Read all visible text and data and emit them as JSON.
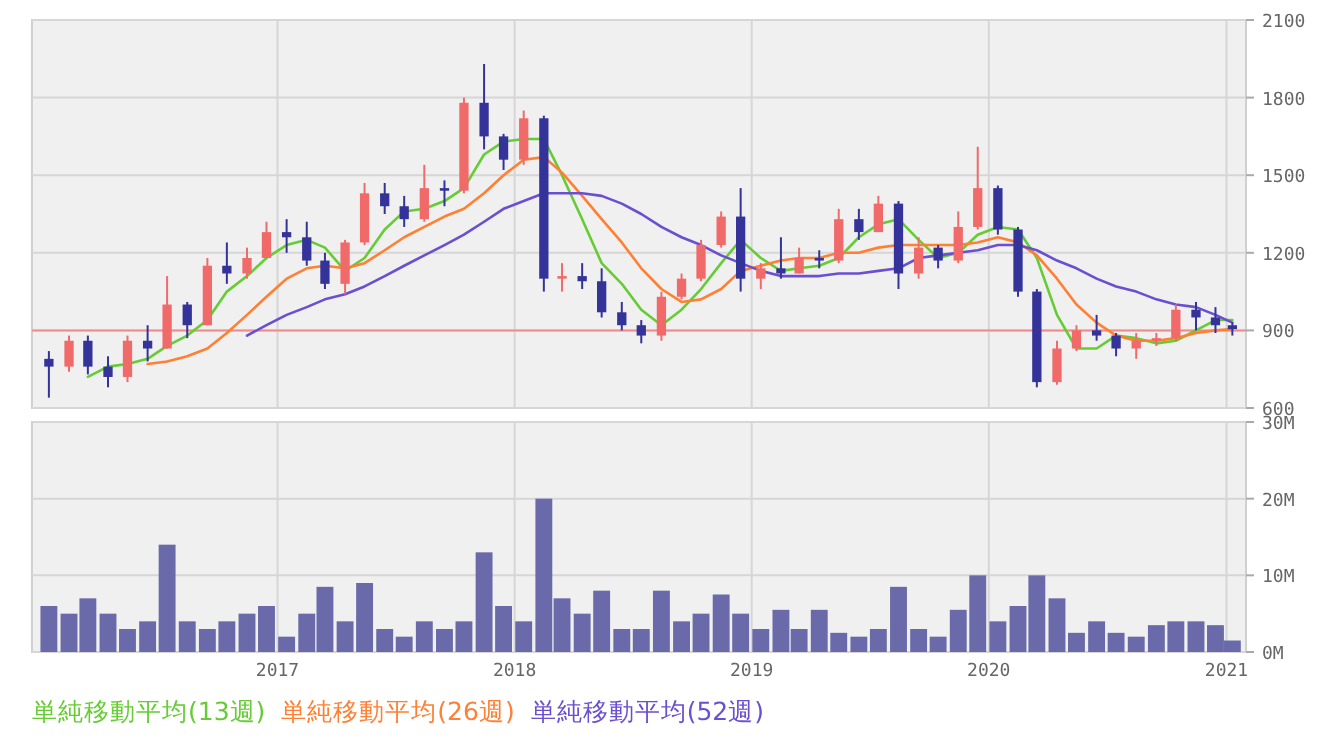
{
  "chart_data": [
    {
      "type": "candlestick",
      "xlim": [
        "2015-12-20",
        "2021-01-31"
      ],
      "xticks": [
        {
          "value": "2017-01-01",
          "label": null
        },
        {
          "value": "2018-01-01",
          "label": null
        },
        {
          "value": "2019-01-01",
          "label": null
        },
        {
          "value": "2020-01-01",
          "label": null
        },
        {
          "value": "2021-01-01",
          "label": null
        }
      ],
      "ylim": [
        600,
        2100
      ],
      "yticks": [
        600,
        900,
        1200,
        1500,
        1800,
        2100
      ],
      "tick_labels": "y",
      "grid": true,
      "legend": "bottom",
      "x": [
        "2016-01-15",
        "2016-02-15",
        "2016-03-15",
        "2016-04-15",
        "2016-05-15",
        "2016-06-15",
        "2016-07-15",
        "2016-08-15",
        "2016-09-15",
        "2016-10-15",
        "2016-11-15",
        "2016-12-15",
        "2017-01-15",
        "2017-02-15",
        "2017-03-15",
        "2017-04-15",
        "2017-05-15",
        "2017-06-15",
        "2017-07-15",
        "2017-08-15",
        "2017-09-15",
        "2017-10-15",
        "2017-11-15",
        "2017-12-15",
        "2018-01-15",
        "2018-02-15",
        "2018-03-15",
        "2018-04-15",
        "2018-05-15",
        "2018-06-15",
        "2018-07-15",
        "2018-08-15",
        "2018-09-15",
        "2018-10-15",
        "2018-11-15",
        "2018-12-15",
        "2019-01-15",
        "2019-02-15",
        "2019-03-15",
        "2019-04-15",
        "2019-05-15",
        "2019-06-15",
        "2019-07-15",
        "2019-08-15",
        "2019-09-15",
        "2019-10-15",
        "2019-11-15",
        "2019-12-15",
        "2020-01-15",
        "2020-02-15",
        "2020-03-15",
        "2020-04-15",
        "2020-05-15",
        "2020-06-15",
        "2020-07-15",
        "2020-08-15",
        "2020-09-15",
        "2020-10-15",
        "2020-11-15",
        "2020-12-15",
        "2021-01-10"
      ],
      "ohlc": [
        [
          790,
          820,
          640,
          760
        ],
        [
          760,
          880,
          740,
          860
        ],
        [
          860,
          880,
          730,
          760
        ],
        [
          760,
          800,
          680,
          720
        ],
        [
          720,
          880,
          700,
          860
        ],
        [
          860,
          920,
          780,
          830
        ],
        [
          830,
          1110,
          830,
          1000
        ],
        [
          1000,
          1010,
          870,
          920
        ],
        [
          920,
          1180,
          920,
          1150
        ],
        [
          1150,
          1240,
          1080,
          1120
        ],
        [
          1120,
          1220,
          1100,
          1180
        ],
        [
          1180,
          1320,
          1180,
          1280
        ],
        [
          1280,
          1330,
          1200,
          1260
        ],
        [
          1260,
          1320,
          1150,
          1170
        ],
        [
          1170,
          1200,
          1060,
          1080
        ],
        [
          1080,
          1250,
          1040,
          1240
        ],
        [
          1240,
          1470,
          1230,
          1430
        ],
        [
          1430,
          1470,
          1350,
          1380
        ],
        [
          1380,
          1420,
          1300,
          1330
        ],
        [
          1330,
          1540,
          1320,
          1450
        ],
        [
          1450,
          1480,
          1380,
          1440
        ],
        [
          1440,
          1800,
          1430,
          1780
        ],
        [
          1780,
          1930,
          1600,
          1650
        ],
        [
          1650,
          1660,
          1520,
          1560
        ],
        [
          1560,
          1750,
          1540,
          1720
        ],
        [
          1720,
          1730,
          1050,
          1100
        ],
        [
          1100,
          1160,
          1050,
          1110
        ],
        [
          1110,
          1160,
          1060,
          1090
        ],
        [
          1090,
          1140,
          950,
          970
        ],
        [
          970,
          1010,
          900,
          920
        ],
        [
          920,
          940,
          850,
          880
        ],
        [
          880,
          1050,
          860,
          1030
        ],
        [
          1030,
          1120,
          1020,
          1100
        ],
        [
          1100,
          1250,
          1090,
          1230
        ],
        [
          1230,
          1360,
          1220,
          1340
        ],
        [
          1340,
          1450,
          1050,
          1100
        ],
        [
          1100,
          1160,
          1060,
          1140
        ],
        [
          1140,
          1260,
          1100,
          1120
        ],
        [
          1120,
          1220,
          1120,
          1180
        ],
        [
          1180,
          1210,
          1140,
          1170
        ],
        [
          1170,
          1370,
          1160,
          1330
        ],
        [
          1330,
          1370,
          1250,
          1280
        ],
        [
          1280,
          1420,
          1280,
          1390
        ],
        [
          1390,
          1400,
          1060,
          1120
        ],
        [
          1120,
          1260,
          1100,
          1220
        ],
        [
          1220,
          1230,
          1140,
          1170
        ],
        [
          1170,
          1360,
          1160,
          1300
        ],
        [
          1300,
          1610,
          1290,
          1450
        ],
        [
          1450,
          1460,
          1270,
          1290
        ],
        [
          1290,
          1300,
          1030,
          1050
        ],
        [
          1050,
          1060,
          680,
          700
        ],
        [
          700,
          860,
          690,
          830
        ],
        [
          830,
          920,
          820,
          900
        ],
        [
          900,
          960,
          860,
          880
        ],
        [
          880,
          890,
          800,
          830
        ],
        [
          830,
          890,
          790,
          860
        ],
        [
          860,
          890,
          840,
          870
        ],
        [
          870,
          1000,
          860,
          980
        ],
        [
          980,
          1010,
          900,
          950
        ],
        [
          950,
          990,
          890,
          920
        ],
        [
          920,
          930,
          880,
          905
        ]
      ],
      "series": [
        {
          "type": "line",
          "name": "単純移動平均(13週)",
          "color": "#66cc33",
          "values": [
            null,
            null,
            720,
            760,
            770,
            790,
            840,
            880,
            940,
            1050,
            1110,
            1180,
            1230,
            1250,
            1220,
            1130,
            1180,
            1290,
            1360,
            1370,
            1400,
            1450,
            1580,
            1630,
            1640,
            1640,
            1500,
            1330,
            1160,
            1080,
            980,
            920,
            980,
            1060,
            1160,
            1250,
            1180,
            1130,
            1140,
            1150,
            1180,
            1260,
            1310,
            1330,
            1250,
            1180,
            1200,
            1270,
            1300,
            1290,
            1180,
            960,
            830,
            830,
            880,
            870,
            850,
            860,
            900,
            940,
            940
          ]
        },
        {
          "type": "line",
          "name": "単純移動平均(26週)",
          "color": "#ff7f33",
          "values": [
            null,
            null,
            null,
            null,
            null,
            770,
            780,
            800,
            830,
            890,
            960,
            1030,
            1100,
            1140,
            1150,
            1140,
            1160,
            1210,
            1260,
            1300,
            1340,
            1370,
            1430,
            1500,
            1560,
            1570,
            1510,
            1420,
            1330,
            1240,
            1140,
            1060,
            1010,
            1020,
            1060,
            1130,
            1150,
            1170,
            1180,
            1180,
            1200,
            1200,
            1220,
            1230,
            1230,
            1230,
            1230,
            1240,
            1260,
            1240,
            1190,
            1100,
            1000,
            930,
            880,
            860,
            860,
            870,
            890,
            900,
            905
          ]
        },
        {
          "type": "line",
          "name": "単純移動平均(52週)",
          "color": "#6a4fd0",
          "values": [
            null,
            null,
            null,
            null,
            null,
            null,
            null,
            null,
            null,
            null,
            880,
            920,
            960,
            990,
            1020,
            1040,
            1070,
            1110,
            1150,
            1190,
            1230,
            1270,
            1320,
            1370,
            1400,
            1430,
            1430,
            1430,
            1420,
            1390,
            1350,
            1300,
            1260,
            1230,
            1190,
            1160,
            1130,
            1110,
            1110,
            1110,
            1120,
            1120,
            1130,
            1140,
            1180,
            1190,
            1200,
            1210,
            1230,
            1230,
            1210,
            1170,
            1140,
            1100,
            1070,
            1050,
            1020,
            1000,
            990,
            960,
            930
          ]
        }
      ],
      "ref_lines": [
        {
          "axis": "y",
          "value": 900,
          "color": "#f08c8c"
        }
      ]
    },
    {
      "type": "bar",
      "xlim": [
        "2015-12-20",
        "2021-01-31"
      ],
      "xticks": [
        {
          "value": "2017-01-01",
          "label": "2017"
        },
        {
          "value": "2018-01-01",
          "label": "2018"
        },
        {
          "value": "2019-01-01",
          "label": "2019"
        },
        {
          "value": "2020-01-01",
          "label": "2020"
        },
        {
          "value": "2021-01-01",
          "label": "2021"
        }
      ],
      "ylim": [
        0,
        30
      ],
      "yticks": [
        {
          "value": 0,
          "label": "0M"
        },
        {
          "value": 10,
          "label": "10M"
        },
        {
          "value": 20,
          "label": "20M"
        },
        {
          "value": 30,
          "label": "30M"
        }
      ],
      "grid": true,
      "color": "#6a6aaa",
      "x": [
        "2016-01-15",
        "2016-02-15",
        "2016-03-15",
        "2016-04-15",
        "2016-05-15",
        "2016-06-15",
        "2016-07-15",
        "2016-08-15",
        "2016-09-15",
        "2016-10-15",
        "2016-11-15",
        "2016-12-15",
        "2017-01-15",
        "2017-02-15",
        "2017-03-15",
        "2017-04-15",
        "2017-05-15",
        "2017-06-15",
        "2017-07-15",
        "2017-08-15",
        "2017-09-15",
        "2017-10-15",
        "2017-11-15",
        "2017-12-15",
        "2018-01-15",
        "2018-02-15",
        "2018-03-15",
        "2018-04-15",
        "2018-05-15",
        "2018-06-15",
        "2018-07-15",
        "2018-08-15",
        "2018-09-15",
        "2018-10-15",
        "2018-11-15",
        "2018-12-15",
        "2019-01-15",
        "2019-02-15",
        "2019-03-15",
        "2019-04-15",
        "2019-05-15",
        "2019-06-15",
        "2019-07-15",
        "2019-08-15",
        "2019-09-15",
        "2019-10-15",
        "2019-11-15",
        "2019-12-15",
        "2020-01-15",
        "2020-02-15",
        "2020-03-15",
        "2020-04-15",
        "2020-05-15",
        "2020-06-15",
        "2020-07-15",
        "2020-08-15",
        "2020-09-15",
        "2020-10-15",
        "2020-11-15",
        "2020-12-15",
        "2021-01-10"
      ],
      "values": [
        6,
        5,
        7,
        5,
        3,
        4,
        14,
        4,
        3,
        4,
        5,
        6,
        2,
        5,
        8.5,
        4,
        9,
        3,
        2,
        4,
        3,
        4,
        13,
        6,
        4,
        20,
        7,
        5,
        8,
        3,
        3,
        8,
        4,
        5,
        7.5,
        5,
        3,
        5.5,
        3,
        5.5,
        2.5,
        2,
        3,
        8.5,
        3,
        2,
        5.5,
        10,
        4,
        6,
        10,
        7,
        2.5,
        4,
        2.5,
        2,
        3.5,
        4,
        4,
        3.5,
        1.5
      ]
    }
  ]
}
